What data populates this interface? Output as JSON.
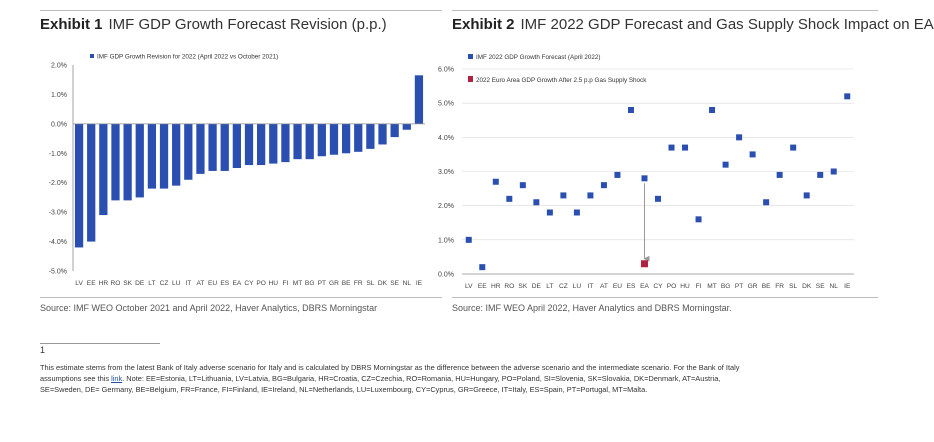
{
  "exhibit1": {
    "label": "Exhibit 1",
    "title": "IMF GDP Growth Forecast Revision (p.p.)",
    "source": "Source: IMF WEO October 2021 and April 2022, Haver Analytics, DBRS Morningstar"
  },
  "exhibit2": {
    "label": "Exhibit 2",
    "title": "IMF 2022 GDP Forecast and Gas Supply Shock Impact on EA",
    "source": "Source: IMF WEO April 2022, Haver Analytics and DBRS Morningstar."
  },
  "footnote": {
    "mark": "1",
    "text_before": "This estimate stems from the latest Bank of Italy adverse scenario for Italy and is calculated by DBRS Morningstar as the difference between the adverse scenario and the intermediate scenario. For the Bank of Italy assumptions see this ",
    "link": "link",
    "text_after": ". Note: EE=Estonia, LT=Lithuania, LV=Latvia, BG=Bulgaria, HR=Croatia, CZ=Czechia, RO=Romania, HU=Hungary, PO=Poland, SI=Slovenia, SK=Slovakia, DK=Denmark, AT=Austria, SE=Sweden, DE= Germany, BE=Belgium, FR=France, FI=Finland, IE=Ireland, NL=Netherlands, LU=Luxembourg, CY=Cyprus, GR=Greece, IT=Italy, ES=Spain, PT=Portugal, MT=Malta."
  },
  "colors": {
    "bar": "#2a4fb0",
    "point": "#2a4fb0",
    "shock": "#b0223f",
    "arrow": "#999999",
    "grid": "#d9d9d9",
    "axis": "#8c8c8c"
  },
  "chart_data": [
    {
      "type": "bar",
      "title": "IMF GDP Growth Forecast Revision (p.p.)",
      "legend": "IMF GDP Growth Revision for 2022 (April 2022 vs October 2021)",
      "legend_position": "top-left",
      "categories": [
        "LV",
        "EE",
        "HR",
        "RO",
        "SK",
        "DE",
        "LT",
        "CZ",
        "LU",
        "IT",
        "AT",
        "EU",
        "ES",
        "EA",
        "CY",
        "PO",
        "HU",
        "FI",
        "MT",
        "BG",
        "PT",
        "GR",
        "BE",
        "FR",
        "SL",
        "DK",
        "SE",
        "NL",
        "IE"
      ],
      "values": [
        -4.2,
        -4.0,
        -3.1,
        -2.6,
        -2.6,
        -2.5,
        -2.2,
        -2.2,
        -2.1,
        -1.9,
        -1.7,
        -1.6,
        -1.6,
        -1.5,
        -1.4,
        -1.4,
        -1.35,
        -1.3,
        -1.2,
        -1.2,
        -1.1,
        -1.05,
        -1.0,
        -0.95,
        -0.85,
        -0.7,
        -0.45,
        -0.2,
        1.65
      ],
      "yticks": [
        "2.0%",
        "1.0%",
        "0.0%",
        "-1.0%",
        "-2.0%",
        "-3.0%",
        "-4.0%",
        "-5.0%"
      ],
      "ylim": [
        -5,
        2
      ],
      "xlabel": "",
      "ylabel": ""
    },
    {
      "type": "scatter",
      "title": "IMF 2022 GDP Forecast and Gas Supply Shock Impact on EA",
      "categories": [
        "LV",
        "EE",
        "HR",
        "RO",
        "SK",
        "DE",
        "LT",
        "CZ",
        "LU",
        "IT",
        "AT",
        "EU",
        "ES",
        "EA",
        "CY",
        "PO",
        "HU",
        "FI",
        "MT",
        "BG",
        "PT",
        "GR",
        "BE",
        "FR",
        "SL",
        "DK",
        "SE",
        "NL",
        "IE"
      ],
      "series": [
        {
          "name": "IMF 2022 GDP Growth Forecast (April 2022)",
          "values": [
            1.0,
            0.2,
            2.7,
            2.2,
            2.6,
            2.1,
            1.8,
            2.3,
            1.8,
            2.3,
            2.6,
            2.9,
            4.8,
            2.8,
            2.2,
            3.7,
            3.7,
            1.6,
            4.8,
            3.2,
            4.0,
            3.5,
            2.1,
            2.9,
            3.7,
            2.3,
            2.9,
            3.0,
            5.2
          ]
        },
        {
          "name": "2022 Euro Area GDP Growth After 2.5 p.p Gas Supply Shock",
          "category": "EA",
          "value": 0.3
        }
      ],
      "annotation": {
        "type": "arrow",
        "category": "EA",
        "from": 2.8,
        "to": 0.3
      },
      "yticks": [
        "6.0%",
        "5.0%",
        "4.0%",
        "3.0%",
        "2.0%",
        "1.0%",
        "0.0%"
      ],
      "ylim": [
        0,
        6
      ],
      "legend_position": "top-left",
      "xlabel": "",
      "ylabel": ""
    }
  ]
}
